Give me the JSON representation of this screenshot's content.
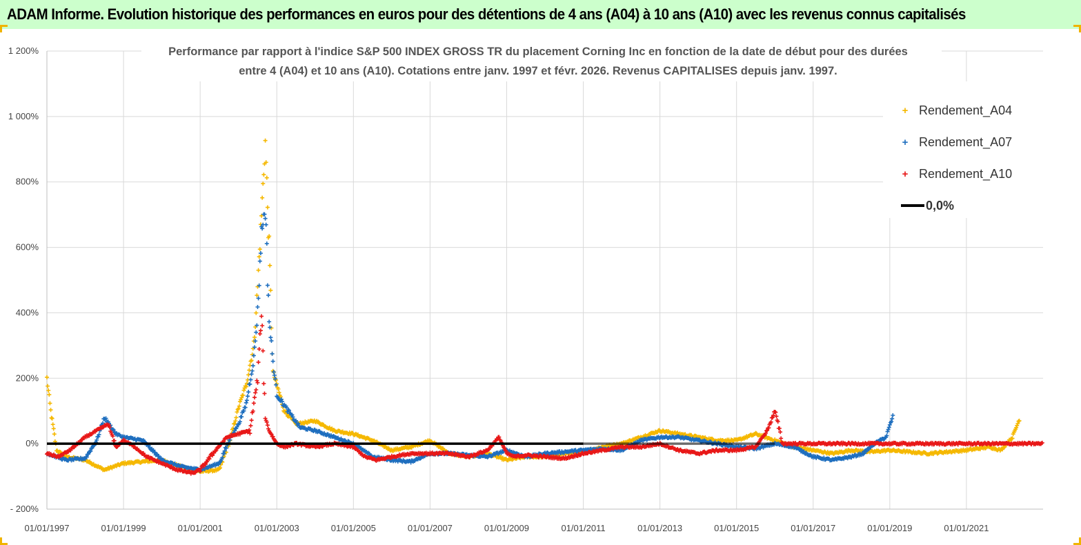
{
  "header": {
    "title": "ADAM Informe. Evolution historique des performances en euros pour des détentions de 4 ans (A04) à 10 ans (A10) avec les revenus connus capitalisés"
  },
  "chart_data": {
    "type": "scatter",
    "title_line1": "Performance par rapport à l'indice S&P 500 INDEX GROSS TR  du placement Corning Inc en fonction de la date de début pour des durées",
    "title_line2": "entre 4 (A04) et 10 ans (A10). Cotations entre janv. 1997 et févr. 2026. Revenus CAPITALISES depuis janv. 1997.",
    "ylim": [
      -200,
      1200
    ],
    "y_ticks": [
      -200,
      0,
      200,
      400,
      600,
      800,
      1000,
      1200
    ],
    "y_tick_labels": [
      "- 200%",
      "0%",
      "200%",
      "400%",
      "600%",
      "800%",
      "1 000%",
      "1 200%"
    ],
    "xlim": [
      1997.0,
      2023.0
    ],
    "x_ticks": [
      1997,
      1999,
      2001,
      2003,
      2005,
      2007,
      2009,
      2011,
      2013,
      2015,
      2017,
      2019,
      2021
    ],
    "x_tick_labels": [
      "01/01/1997",
      "01/01/1999",
      "01/01/2001",
      "01/01/2003",
      "01/01/2005",
      "01/01/2007",
      "01/01/2009",
      "01/01/2011",
      "01/01/2013",
      "01/01/2015",
      "01/01/2017",
      "01/01/2019",
      "01/01/2021"
    ],
    "grid": true,
    "legend_position": "top-right",
    "series": [
      {
        "name": "Rendement_A04",
        "color": "#f5b800",
        "x": [
          1997.0,
          1997.1,
          1997.25,
          1997.5,
          1998.0,
          1998.5,
          1999.0,
          1999.5,
          2000.0,
          2000.5,
          2001.0,
          2001.5,
          2001.8,
          2002.0,
          2002.2,
          2002.4,
          2002.5,
          2002.6,
          2002.7,
          2002.8,
          2002.9,
          2003.0,
          2003.2,
          2003.5,
          2004.0,
          2004.5,
          2005.0,
          2005.5,
          2006.0,
          2006.5,
          2007.0,
          2007.5,
          2008.0,
          2008.5,
          2009.0,
          2009.5,
          2010.0,
          2010.5,
          2011.0,
          2011.5,
          2012.0,
          2012.5,
          2013.0,
          2013.5,
          2014.0,
          2014.5,
          2015.0,
          2015.5,
          2016.0,
          2016.5,
          2017.0,
          2017.5,
          2018.0,
          2018.5,
          2019.0,
          2019.5,
          2020.0,
          2020.5,
          2021.0,
          2021.3,
          2021.6,
          2021.9,
          2022.2,
          2022.4
        ],
        "y": [
          200,
          100,
          -20,
          -40,
          -50,
          -80,
          -60,
          -55,
          -50,
          -70,
          -85,
          -80,
          20,
          110,
          180,
          300,
          480,
          700,
          920,
          600,
          220,
          180,
          100,
          60,
          70,
          40,
          30,
          10,
          -20,
          -10,
          10,
          -30,
          -40,
          -30,
          -50,
          -40,
          -40,
          -30,
          -25,
          -10,
          0,
          20,
          40,
          30,
          20,
          10,
          10,
          30,
          10,
          -10,
          -20,
          -30,
          -20,
          -25,
          -20,
          -25,
          -30,
          -25,
          -20,
          -15,
          -10,
          -20,
          20,
          80
        ],
        "size": 1.0
      },
      {
        "name": "Rendement_A07",
        "color": "#1f6fbf",
        "x": [
          1997.0,
          1997.5,
          1998.0,
          1998.3,
          1998.5,
          1998.8,
          1999.0,
          1999.5,
          2000.0,
          2000.5,
          2001.0,
          2001.5,
          2001.8,
          2002.0,
          2002.2,
          2002.4,
          2002.5,
          2002.6,
          2002.7,
          2002.8,
          2002.9,
          2003.0,
          2003.3,
          2003.6,
          2004.0,
          2004.5,
          2005.0,
          2005.5,
          2006.0,
          2006.5,
          2007.0,
          2007.5,
          2008.0,
          2008.5,
          2009.0,
          2009.5,
          2010.0,
          2010.5,
          2011.0,
          2011.5,
          2012.0,
          2012.5,
          2013.0,
          2013.5,
          2014.0,
          2014.5,
          2015.0,
          2015.5,
          2016.0,
          2016.5,
          2017.0,
          2017.5,
          2018.0,
          2018.3,
          2018.6,
          2018.9,
          2019.1
        ],
        "y": [
          -30,
          -50,
          -45,
          10,
          80,
          30,
          20,
          10,
          -50,
          -70,
          -80,
          -60,
          20,
          60,
          120,
          260,
          400,
          650,
          720,
          380,
          250,
          150,
          100,
          50,
          40,
          20,
          0,
          -40,
          -50,
          -55,
          -30,
          -30,
          -35,
          -40,
          -20,
          -40,
          -30,
          -25,
          -20,
          -15,
          -20,
          10,
          20,
          20,
          10,
          0,
          -10,
          -15,
          0,
          -10,
          -40,
          -50,
          -40,
          -30,
          0,
          20,
          90
        ],
        "size": 1.0
      },
      {
        "name": "Rendement_A10",
        "color": "#e81818",
        "x": [
          1997.0,
          1997.3,
          1997.6,
          1998.0,
          1998.3,
          1998.6,
          1998.8,
          1999.0,
          1999.3,
          1999.6,
          2000.0,
          2000.4,
          2000.8,
          2001.0,
          2001.4,
          2001.7,
          2002.0,
          2002.3,
          2002.5,
          2002.6,
          2002.7,
          2002.8,
          2002.9,
          2003.0,
          2003.2,
          2003.5,
          2004.0,
          2004.5,
          2005.0,
          2005.3,
          2005.6,
          2006.0,
          2006.5,
          2007.0,
          2007.5,
          2008.0,
          2008.5,
          2008.8,
          2009.0,
          2009.2,
          2009.5,
          2010.0,
          2010.5,
          2011.0,
          2011.5,
          2012.0,
          2012.5,
          2013.0,
          2013.5,
          2014.0,
          2014.5,
          2015.0,
          2015.5,
          2015.8,
          2016.0,
          2016.2,
          2016.5,
          2017.0,
          2018.0,
          2019.0,
          2020.0,
          2021.0,
          2022.0,
          2023.0
        ],
        "y": [
          -30,
          -40,
          -20,
          20,
          40,
          60,
          -10,
          10,
          -10,
          -40,
          -60,
          -80,
          -90,
          -80,
          -20,
          20,
          30,
          40,
          200,
          400,
          80,
          40,
          20,
          0,
          -10,
          0,
          -10,
          0,
          -10,
          -40,
          -50,
          -40,
          -30,
          -30,
          -30,
          -40,
          -20,
          20,
          -30,
          -40,
          -35,
          -40,
          -45,
          -30,
          -20,
          -10,
          -10,
          0,
          -20,
          -30,
          -20,
          -20,
          -10,
          40,
          100,
          0,
          0,
          0,
          0,
          0,
          0,
          0,
          0,
          0
        ],
        "size": 1.0
      }
    ],
    "reference_line": {
      "name": "0,0%",
      "y": 0,
      "color": "#000000"
    }
  },
  "legend": {
    "items": [
      {
        "label": "Rendement_A04",
        "color": "#f5b800",
        "symbol": "+"
      },
      {
        "label": "Rendement_A07",
        "color": "#1f6fbf",
        "symbol": "+"
      },
      {
        "label": "Rendement_A10",
        "color": "#e81818",
        "symbol": "+"
      },
      {
        "label": "0,0%",
        "color": "#000000",
        "symbol": "line"
      }
    ]
  }
}
